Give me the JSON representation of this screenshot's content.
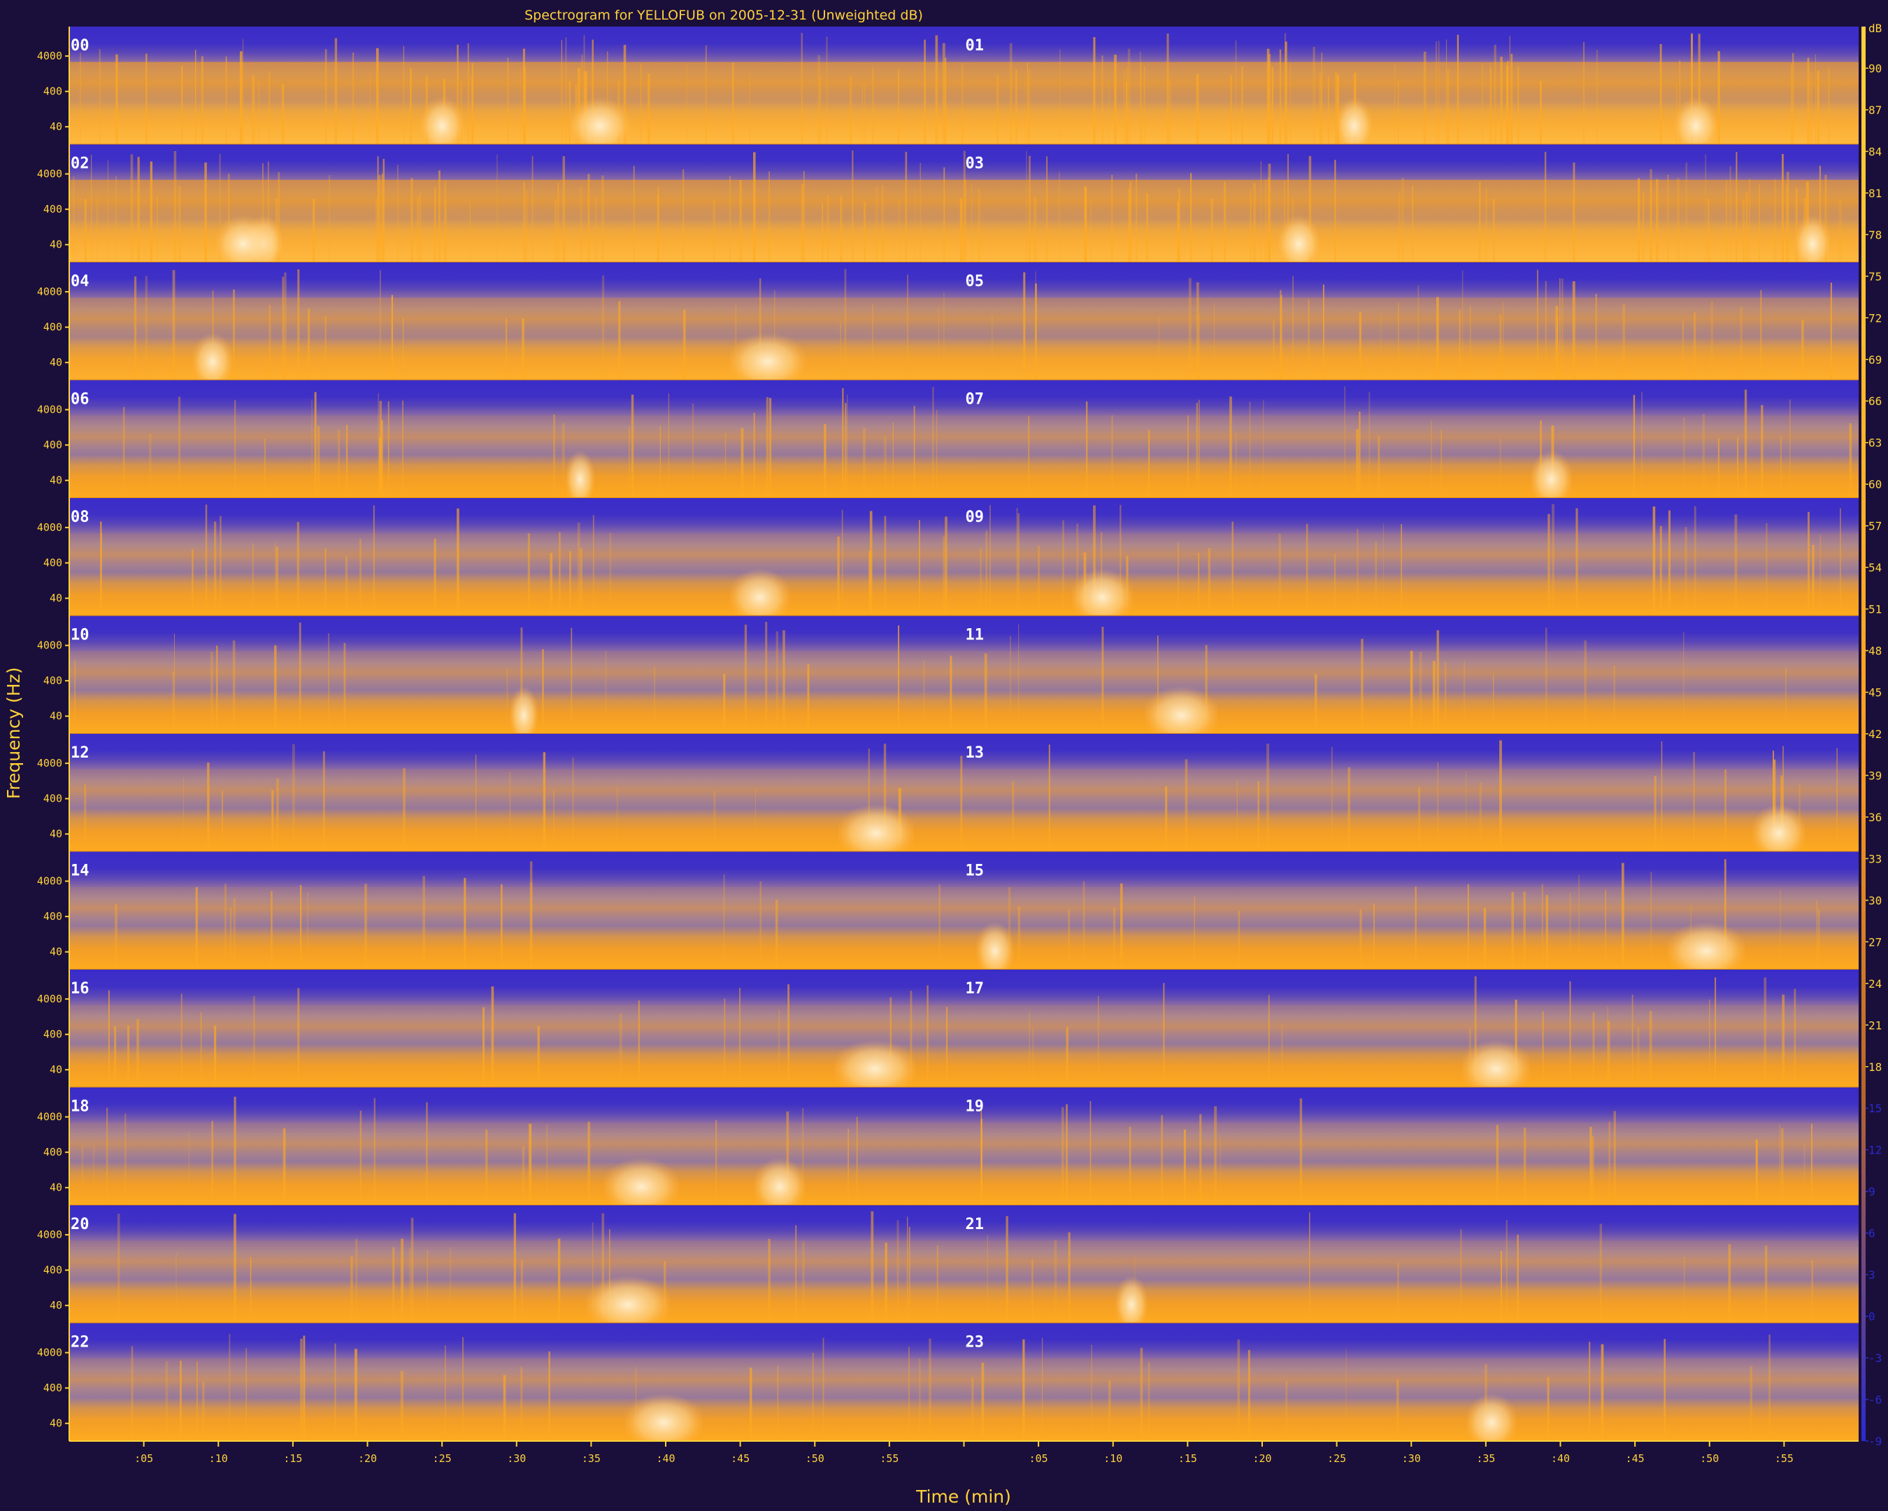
{
  "chart_data": {
    "type": "heatmap",
    "title": "Spectrogram for YELLOFUB on 2005-12-31 (Unweighted dB)",
    "xlabel": "Time (min)",
    "ylabel": "Frequency (Hz)",
    "rows": [
      {
        "hours": [
          "00",
          "01"
        ]
      },
      {
        "hours": [
          "02",
          "03"
        ]
      },
      {
        "hours": [
          "04",
          "05"
        ]
      },
      {
        "hours": [
          "06",
          "07"
        ]
      },
      {
        "hours": [
          "08",
          "09"
        ]
      },
      {
        "hours": [
          "10",
          "11"
        ]
      },
      {
        "hours": [
          "12",
          "13"
        ]
      },
      {
        "hours": [
          "14",
          "15"
        ]
      },
      {
        "hours": [
          "16",
          "17"
        ]
      },
      {
        "hours": [
          "18",
          "19"
        ]
      },
      {
        "hours": [
          "20",
          "21"
        ]
      },
      {
        "hours": [
          "22",
          "23"
        ]
      }
    ],
    "y_tick_labels": [
      "4000",
      "400",
      "40"
    ],
    "x_tick_labels": [
      ":05",
      ":10",
      ":15",
      ":20",
      ":25",
      ":30",
      ":35",
      ":40",
      ":45",
      ":50",
      ":55",
      "",
      ":05",
      ":10",
      ":15",
      ":20",
      ":25",
      ":30",
      ":35",
      ":40",
      ":45",
      ":50",
      ":55"
    ],
    "x_range_min": [
      0,
      120
    ],
    "colorbar": {
      "unit": "dB",
      "ticks": [
        90,
        87,
        84,
        81,
        78,
        75,
        72,
        69,
        66,
        63,
        60,
        57,
        54,
        51,
        48,
        45,
        42,
        39,
        36,
        33,
        30,
        27,
        24,
        21,
        18,
        15,
        12,
        9,
        6,
        3,
        0,
        -3,
        -6,
        -9
      ],
      "range": [
        -9,
        93
      ],
      "high_color": "#ffd23a",
      "low_color": "#2a2ad0"
    },
    "palette": {
      "background": "#1a0f3a",
      "quiet": "#4a3fc4",
      "mid": "#9a78a8",
      "loud": "#ffa414",
      "hot": "#ffe9b8"
    }
  }
}
